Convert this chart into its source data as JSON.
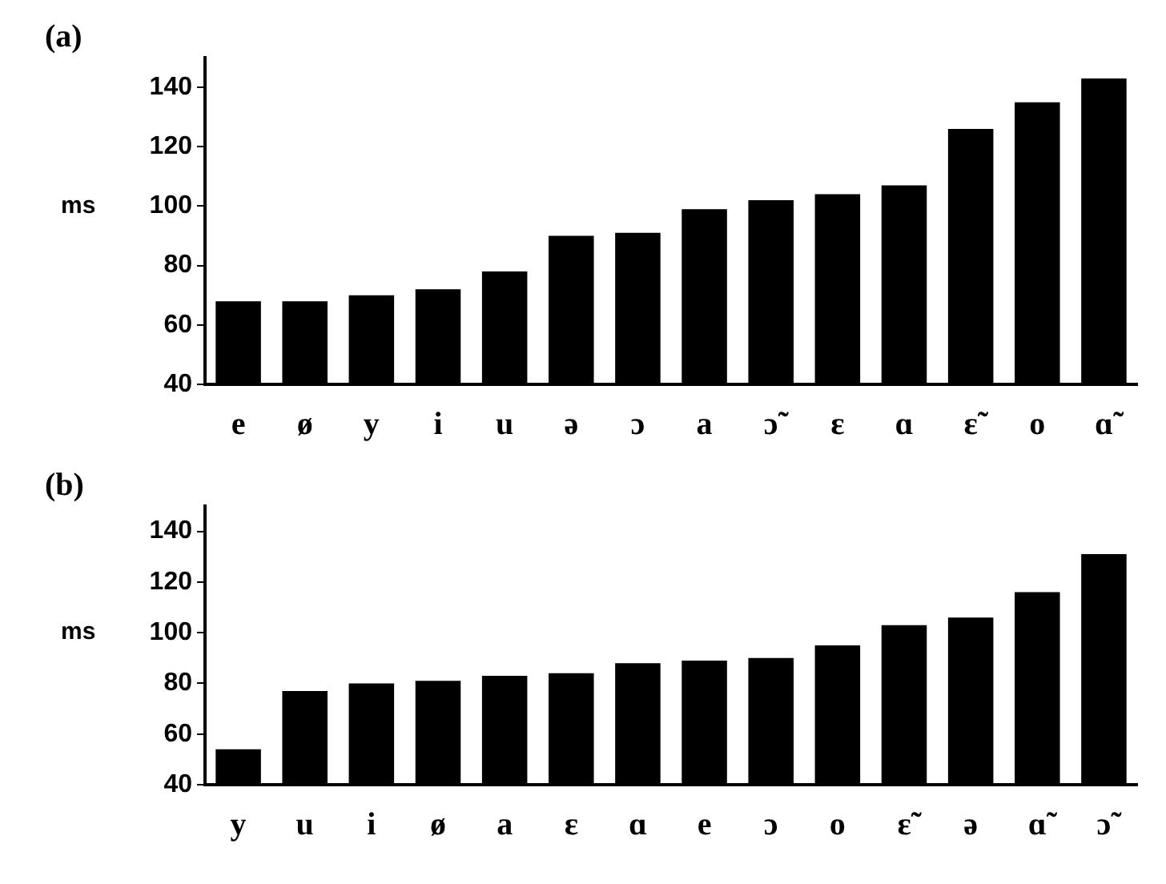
{
  "chart_data": [
    {
      "type": "bar",
      "title": "(a)",
      "ylabel": "ms",
      "categories": [
        "e",
        "ø",
        "y",
        "i",
        "u",
        "ə",
        "ɔ",
        "a",
        "ɔ̃",
        "ɛ",
        "ɑ",
        "ɛ̃",
        "o",
        "ɑ̃"
      ],
      "values": [
        68,
        68,
        70,
        72,
        78,
        90,
        91,
        99,
        102,
        104,
        107,
        126,
        135,
        143
      ],
      "color": "#000000",
      "ylim": [
        40,
        150
      ],
      "yticks": [
        40,
        60,
        80,
        100,
        120,
        140
      ],
      "grid": false,
      "legend": false
    },
    {
      "type": "bar",
      "title": "(b)",
      "ylabel": "ms",
      "categories": [
        "y",
        "u",
        "i",
        "ø",
        "a",
        "ɛ",
        "ɑ",
        "e",
        "ɔ",
        "o",
        "ɛ̃",
        "ə",
        "ɑ̃",
        "ɔ̃"
      ],
      "values": [
        54,
        77,
        80,
        81,
        83,
        84,
        88,
        89,
        90,
        95,
        103,
        106,
        116,
        131
      ],
      "color": "#000000",
      "ylim": [
        40,
        150
      ],
      "yticks": [
        40,
        60,
        80,
        100,
        120,
        140
      ],
      "grid": false,
      "legend": false
    }
  ]
}
